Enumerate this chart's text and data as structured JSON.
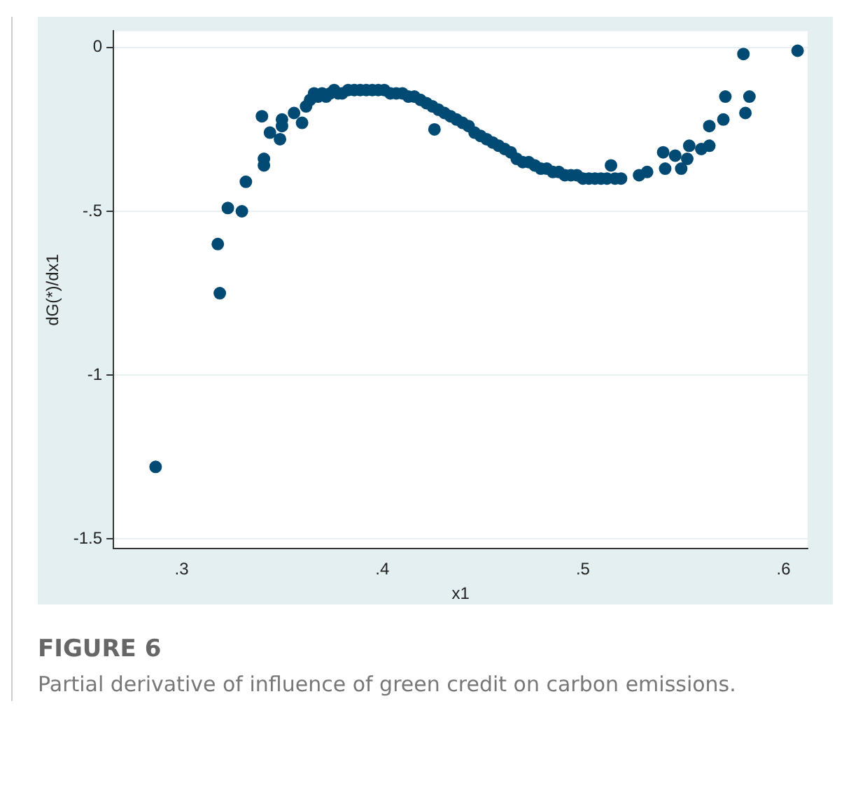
{
  "chart_data": {
    "type": "scatter",
    "title": "FIGURE 6",
    "annotations": [
      "Partial derivative of influence of green credit on carbon emissions."
    ],
    "xlabel": "x1",
    "ylabel": "dG(*)/dx1",
    "x": [
      0.287,
      0.319,
      0.318,
      0.323,
      0.33,
      0.332,
      0.341,
      0.341,
      0.34,
      0.344,
      0.349,
      0.35,
      0.35,
      0.356,
      0.36,
      0.362,
      0.364,
      0.366,
      0.368,
      0.37,
      0.372,
      0.374,
      0.376,
      0.378,
      0.38,
      0.383,
      0.386,
      0.389,
      0.392,
      0.395,
      0.398,
      0.401,
      0.404,
      0.407,
      0.41,
      0.413,
      0.416,
      0.419,
      0.422,
      0.425,
      0.426,
      0.428,
      0.431,
      0.434,
      0.437,
      0.44,
      0.443,
      0.446,
      0.449,
      0.452,
      0.455,
      0.458,
      0.461,
      0.464,
      0.467,
      0.47,
      0.473,
      0.476,
      0.479,
      0.482,
      0.485,
      0.488,
      0.491,
      0.494,
      0.497,
      0.5,
      0.503,
      0.506,
      0.509,
      0.512,
      0.514,
      0.516,
      0.519,
      0.528,
      0.532,
      0.54,
      0.541,
      0.546,
      0.549,
      0.552,
      0.553,
      0.559,
      0.563,
      0.563,
      0.57,
      0.571,
      0.58,
      0.581,
      0.583,
      0.607
    ],
    "values": [
      -1.28,
      -0.75,
      -0.6,
      -0.49,
      -0.5,
      -0.41,
      -0.34,
      -0.36,
      -0.21,
      -0.26,
      -0.28,
      -0.22,
      -0.24,
      -0.2,
      -0.23,
      -0.18,
      -0.16,
      -0.14,
      -0.15,
      -0.14,
      -0.15,
      -0.14,
      -0.13,
      -0.14,
      -0.14,
      -0.13,
      -0.13,
      -0.13,
      -0.13,
      -0.13,
      -0.13,
      -0.13,
      -0.14,
      -0.14,
      -0.14,
      -0.15,
      -0.15,
      -0.16,
      -0.17,
      -0.18,
      -0.25,
      -0.19,
      -0.2,
      -0.21,
      -0.22,
      -0.23,
      -0.24,
      -0.26,
      -0.27,
      -0.28,
      -0.29,
      -0.3,
      -0.31,
      -0.32,
      -0.34,
      -0.35,
      -0.35,
      -0.36,
      -0.37,
      -0.37,
      -0.38,
      -0.38,
      -0.39,
      -0.39,
      -0.39,
      -0.4,
      -0.4,
      -0.4,
      -0.4,
      -0.4,
      -0.36,
      -0.4,
      -0.4,
      -0.39,
      -0.38,
      -0.32,
      -0.37,
      -0.33,
      -0.37,
      -0.34,
      -0.3,
      -0.31,
      -0.3,
      -0.24,
      -0.22,
      -0.15,
      -0.02,
      -0.2,
      -0.15,
      -0.01
    ],
    "color": "#004a73",
    "marker": "circle",
    "xlim": [
      0.266,
      0.612
    ],
    "ylim": [
      -1.53,
      0.05
    ],
    "xticks": [
      {
        "value": 0.3,
        "label": ".3"
      },
      {
        "value": 0.4,
        "label": ".4"
      },
      {
        "value": 0.5,
        "label": ".5"
      },
      {
        "value": 0.6,
        "label": ".6"
      }
    ],
    "yticks": [
      {
        "value": 0,
        "label": "0"
      },
      {
        "value": -0.5,
        "label": "-.5"
      },
      {
        "value": -1,
        "label": "-1"
      },
      {
        "value": -1.5,
        "label": "-1.5"
      }
    ],
    "grid": "y",
    "legend": false
  }
}
